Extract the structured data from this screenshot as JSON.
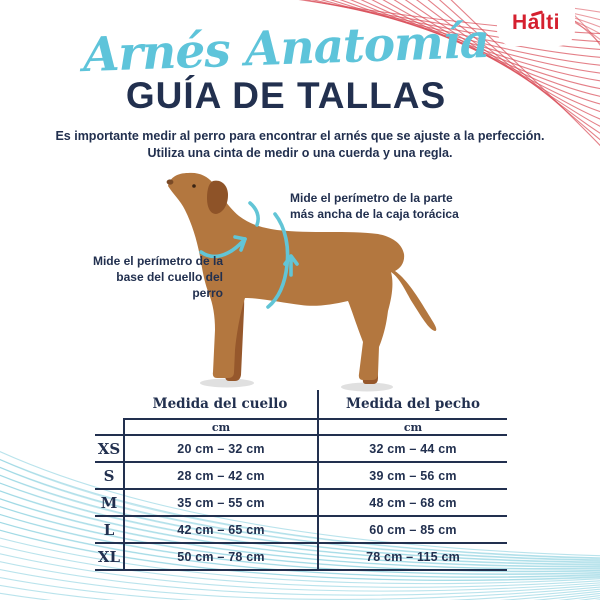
{
  "theme": {
    "navy": "#22304f",
    "teal": "#5ec4da",
    "arrow_teal": "#62c5d6",
    "wave_teal": "#7fccdc",
    "red": "#d5202f",
    "wave_red": "#d94a55",
    "dog_brown": "#b3773f",
    "dog_brown_dark": "#96582c",
    "dog_ear": "#8e5328"
  },
  "brand": {
    "logo_text": "Halti"
  },
  "header": {
    "script_title": "Arnés Anatomía",
    "main_title": "GUÍA DE TALLAS",
    "intro_line1": "Es importante medir al perro para encontrar el arnés que se ajuste a la perfección.",
    "intro_line2": "Utiliza una cinta de medir o una cuerda y una regla."
  },
  "diagram": {
    "neck_note_line1": "Mide el perímetro de la",
    "neck_note_line2": "base del cuello del perro",
    "chest_note_line1": "Mide el perímetro de la parte",
    "chest_note_line2": "más ancha de la caja torácica"
  },
  "size_table": {
    "columns": [
      "Medida del cuello",
      "Medida del pecho"
    ],
    "unit_row": [
      "cm",
      "cm"
    ],
    "rows": [
      {
        "size": "XS",
        "neck": "20 cm – 32 cm",
        "chest": "32 cm – 44 cm"
      },
      {
        "size": "S",
        "neck": "28 cm – 42 cm",
        "chest": "39 cm – 56 cm"
      },
      {
        "size": "M",
        "neck": "35 cm – 55 cm",
        "chest": "48 cm – 68 cm"
      },
      {
        "size": "L",
        "neck": "42 cm – 65 cm",
        "chest": "60 cm – 85 cm"
      },
      {
        "size": "XL",
        "neck": "50 cm – 78 cm",
        "chest": "78 cm – 115 cm"
      }
    ]
  }
}
